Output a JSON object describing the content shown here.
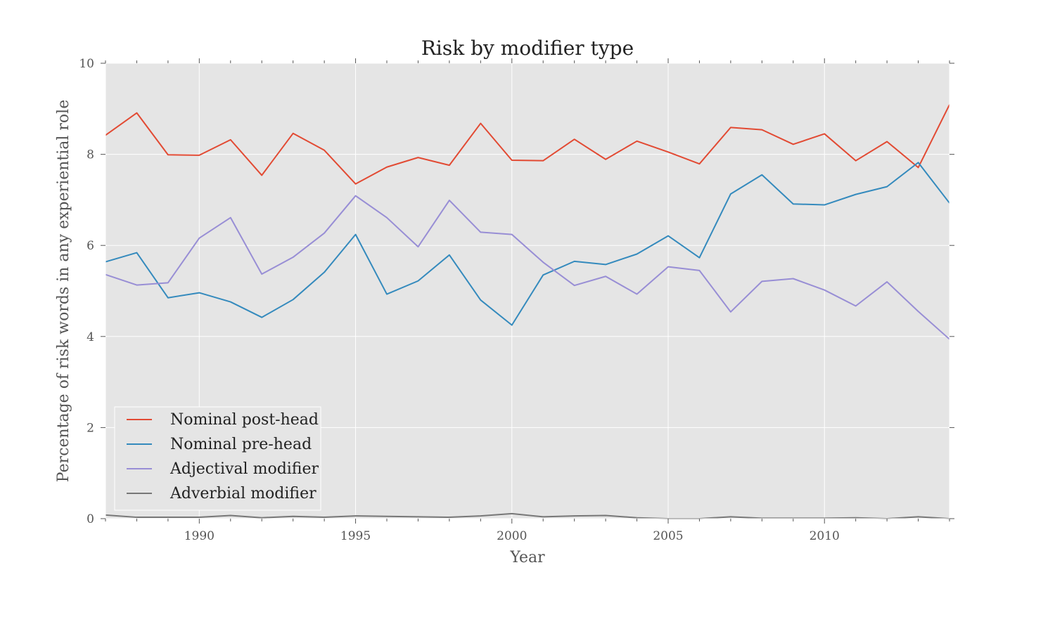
{
  "chart_data": {
    "type": "line",
    "title": "Risk by modifier type",
    "xlabel": "Year",
    "ylabel": "Percentage of risk words in any experiential role",
    "xlim": [
      1987,
      2014
    ],
    "ylim": [
      0,
      10
    ],
    "xticks": [
      1990,
      1995,
      2000,
      2005,
      2010
    ],
    "yticks": [
      0,
      2,
      4,
      6,
      8,
      10
    ],
    "grid": true,
    "legend_position": "lower-left",
    "x": [
      1987,
      1988,
      1989,
      1990,
      1991,
      1992,
      1993,
      1994,
      1995,
      1996,
      1997,
      1998,
      1999,
      2000,
      2001,
      2002,
      2003,
      2004,
      2005,
      2006,
      2007,
      2008,
      2009,
      2010,
      2011,
      2012,
      2013,
      2014
    ],
    "series": [
      {
        "name": "Nominal post-head",
        "color": "#e24a33",
        "values": [
          8.42,
          8.91,
          7.99,
          7.98,
          8.32,
          7.54,
          8.46,
          8.09,
          7.35,
          7.72,
          7.93,
          7.76,
          8.68,
          7.87,
          7.86,
          8.33,
          7.89,
          8.29,
          8.05,
          7.79,
          8.59,
          8.54,
          8.22,
          8.45,
          7.86,
          8.28,
          7.71,
          9.09
        ]
      },
      {
        "name": "Nominal pre-head",
        "color": "#348abd",
        "values": [
          5.64,
          5.84,
          4.85,
          4.96,
          4.76,
          4.42,
          4.81,
          5.41,
          6.24,
          4.93,
          5.22,
          5.79,
          4.8,
          4.25,
          5.35,
          5.65,
          5.58,
          5.81,
          6.21,
          5.73,
          7.13,
          7.55,
          6.91,
          6.89,
          7.12,
          7.29,
          7.82,
          6.93
        ]
      },
      {
        "name": "Adjectival modifier",
        "color": "#988ed5",
        "values": [
          5.36,
          5.13,
          5.18,
          6.16,
          6.61,
          5.37,
          5.74,
          6.27,
          7.09,
          6.61,
          5.97,
          6.99,
          6.29,
          6.24,
          5.63,
          5.12,
          5.32,
          4.93,
          5.53,
          5.45,
          4.54,
          5.21,
          5.27,
          5.02,
          4.67,
          5.2,
          4.55,
          3.94
        ]
      },
      {
        "name": "Adverbial modifier",
        "color": "#777777",
        "values": [
          0.08,
          0.03,
          0.03,
          0.03,
          0.07,
          0.02,
          0.05,
          0.03,
          0.06,
          0.05,
          0.04,
          0.03,
          0.06,
          0.11,
          0.04,
          0.06,
          0.07,
          0.02,
          0.0,
          0.0,
          0.04,
          0.01,
          0.01,
          0.01,
          0.02,
          0.0,
          0.04,
          0.0
        ]
      }
    ]
  }
}
